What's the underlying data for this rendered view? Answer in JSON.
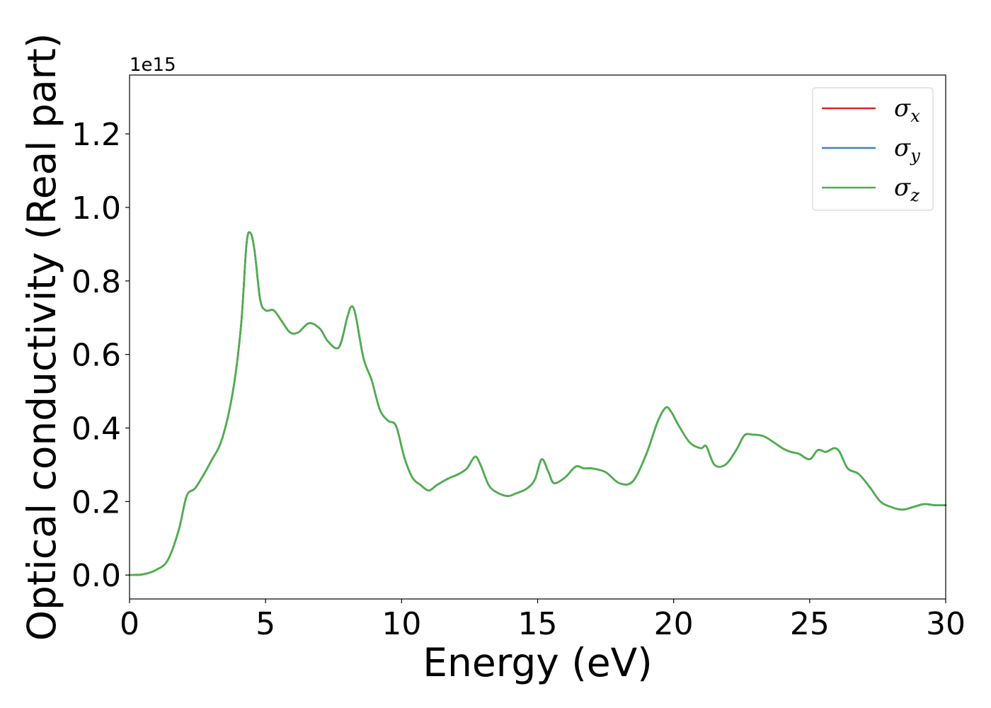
{
  "chart_data": {
    "type": "line",
    "xlabel": "Energy (eV)",
    "ylabel": "Optical conductivity (Real part)",
    "y_offset_label": "1e15",
    "xlim": [
      0,
      30
    ],
    "ylim": [
      -0.065,
      1.36
    ],
    "xticks": [
      0,
      5,
      10,
      15,
      20,
      25,
      30
    ],
    "xtick_labels": [
      "0",
      "5",
      "10",
      "15",
      "20",
      "25",
      "30"
    ],
    "yticks": [
      0.0,
      0.2,
      0.4,
      0.6,
      0.8,
      1.0,
      1.2
    ],
    "ytick_labels": [
      "0.0",
      "0.2",
      "0.4",
      "0.6",
      "0.8",
      "1.0",
      "1.2"
    ],
    "grid": false,
    "legend_position": "top-right",
    "series": [
      {
        "name": "σ_x",
        "symbol": "σ",
        "subscript": "x",
        "color": "#d62728",
        "x": [
          0,
          0.5,
          1.0,
          1.4,
          1.8,
          2.1,
          2.4,
          2.7,
          3.0,
          3.4,
          3.8,
          4.1,
          4.3,
          4.45,
          4.6,
          4.8,
          5.0,
          5.3,
          5.6,
          5.9,
          6.2,
          6.6,
          7.0,
          7.3,
          7.7,
          8.0,
          8.15,
          8.3,
          8.6,
          8.9,
          9.2,
          9.5,
          9.8,
          10.1,
          10.4,
          10.7,
          11.0,
          11.3,
          11.7,
          12.1,
          12.4,
          12.7,
          12.9,
          13.2,
          13.5,
          13.9,
          14.2,
          14.6,
          14.9,
          15.15,
          15.4,
          15.6,
          16.0,
          16.4,
          16.7,
          17.0,
          17.5,
          18.0,
          18.5,
          19.0,
          19.4,
          19.7,
          19.9,
          20.2,
          20.6,
          21.0,
          21.2,
          21.5,
          21.9,
          22.3,
          22.6,
          22.9,
          23.3,
          23.7,
          24.0,
          24.3,
          24.6,
          25.0,
          25.3,
          25.6,
          25.9,
          26.1,
          26.4,
          26.8,
          27.2,
          27.6,
          28.0,
          28.4,
          28.8,
          29.2,
          29.6,
          30.0
        ],
        "y": [
          0.0,
          0.002,
          0.015,
          0.04,
          0.12,
          0.215,
          0.235,
          0.27,
          0.31,
          0.37,
          0.5,
          0.68,
          0.9,
          0.93,
          0.88,
          0.75,
          0.72,
          0.72,
          0.69,
          0.66,
          0.66,
          0.685,
          0.67,
          0.635,
          0.62,
          0.7,
          0.73,
          0.71,
          0.59,
          0.53,
          0.45,
          0.42,
          0.405,
          0.32,
          0.265,
          0.245,
          0.23,
          0.245,
          0.262,
          0.275,
          0.29,
          0.322,
          0.3,
          0.245,
          0.225,
          0.215,
          0.222,
          0.235,
          0.26,
          0.315,
          0.28,
          0.25,
          0.265,
          0.295,
          0.29,
          0.29,
          0.28,
          0.25,
          0.255,
          0.33,
          0.415,
          0.455,
          0.445,
          0.405,
          0.36,
          0.345,
          0.35,
          0.3,
          0.3,
          0.34,
          0.38,
          0.382,
          0.378,
          0.36,
          0.345,
          0.335,
          0.33,
          0.315,
          0.34,
          0.335,
          0.345,
          0.335,
          0.29,
          0.275,
          0.24,
          0.2,
          0.185,
          0.178,
          0.185,
          0.193,
          0.19,
          0.19
        ]
      },
      {
        "name": "σ_y",
        "symbol": "σ",
        "subscript": "y",
        "color": "#3e7fbf",
        "x": [
          0,
          0.5,
          1.0,
          1.4,
          1.8,
          2.1,
          2.4,
          2.7,
          3.0,
          3.4,
          3.8,
          4.1,
          4.3,
          4.45,
          4.6,
          4.8,
          5.0,
          5.3,
          5.6,
          5.9,
          6.2,
          6.6,
          7.0,
          7.3,
          7.7,
          8.0,
          8.15,
          8.3,
          8.6,
          8.9,
          9.2,
          9.5,
          9.8,
          10.1,
          10.4,
          10.7,
          11.0,
          11.3,
          11.7,
          12.1,
          12.4,
          12.7,
          12.9,
          13.2,
          13.5,
          13.9,
          14.2,
          14.6,
          14.9,
          15.15,
          15.4,
          15.6,
          16.0,
          16.4,
          16.7,
          17.0,
          17.5,
          18.0,
          18.5,
          19.0,
          19.4,
          19.7,
          19.9,
          20.2,
          20.6,
          21.0,
          21.2,
          21.5,
          21.9,
          22.3,
          22.6,
          22.9,
          23.3,
          23.7,
          24.0,
          24.3,
          24.6,
          25.0,
          25.3,
          25.6,
          25.9,
          26.1,
          26.4,
          26.8,
          27.2,
          27.6,
          28.0,
          28.4,
          28.8,
          29.2,
          29.6,
          30.0
        ],
        "y": [
          0.0,
          0.002,
          0.015,
          0.04,
          0.12,
          0.215,
          0.235,
          0.27,
          0.31,
          0.37,
          0.5,
          0.68,
          0.9,
          0.93,
          0.88,
          0.75,
          0.72,
          0.72,
          0.69,
          0.66,
          0.66,
          0.685,
          0.67,
          0.635,
          0.62,
          0.7,
          0.73,
          0.71,
          0.59,
          0.53,
          0.45,
          0.42,
          0.405,
          0.32,
          0.265,
          0.245,
          0.23,
          0.245,
          0.262,
          0.275,
          0.29,
          0.322,
          0.3,
          0.245,
          0.225,
          0.215,
          0.222,
          0.235,
          0.26,
          0.315,
          0.28,
          0.25,
          0.265,
          0.295,
          0.29,
          0.29,
          0.28,
          0.25,
          0.255,
          0.33,
          0.415,
          0.455,
          0.445,
          0.405,
          0.36,
          0.345,
          0.35,
          0.3,
          0.3,
          0.34,
          0.38,
          0.382,
          0.378,
          0.36,
          0.345,
          0.335,
          0.33,
          0.315,
          0.34,
          0.335,
          0.345,
          0.335,
          0.29,
          0.275,
          0.24,
          0.2,
          0.185,
          0.178,
          0.185,
          0.193,
          0.19,
          0.19
        ]
      },
      {
        "name": "σ_z",
        "symbol": "σ",
        "subscript": "z",
        "color": "#4daf4a",
        "x": [
          0,
          0.5,
          1.0,
          1.4,
          1.8,
          2.1,
          2.4,
          2.7,
          3.0,
          3.4,
          3.8,
          4.1,
          4.3,
          4.45,
          4.6,
          4.8,
          5.0,
          5.3,
          5.6,
          5.9,
          6.2,
          6.6,
          7.0,
          7.3,
          7.7,
          8.0,
          8.15,
          8.3,
          8.6,
          8.9,
          9.2,
          9.5,
          9.8,
          10.1,
          10.4,
          10.7,
          11.0,
          11.3,
          11.7,
          12.1,
          12.4,
          12.7,
          12.9,
          13.2,
          13.5,
          13.9,
          14.2,
          14.6,
          14.9,
          15.15,
          15.4,
          15.6,
          16.0,
          16.4,
          16.7,
          17.0,
          17.5,
          18.0,
          18.5,
          19.0,
          19.4,
          19.7,
          19.9,
          20.2,
          20.6,
          21.0,
          21.2,
          21.5,
          21.9,
          22.3,
          22.6,
          22.9,
          23.3,
          23.7,
          24.0,
          24.3,
          24.6,
          25.0,
          25.3,
          25.6,
          25.9,
          26.1,
          26.4,
          26.8,
          27.2,
          27.6,
          28.0,
          28.4,
          28.8,
          29.2,
          29.6,
          30.0
        ],
        "y": [
          0.0,
          0.002,
          0.015,
          0.04,
          0.12,
          0.215,
          0.235,
          0.27,
          0.31,
          0.37,
          0.5,
          0.68,
          0.9,
          0.93,
          0.88,
          0.75,
          0.72,
          0.72,
          0.69,
          0.66,
          0.66,
          0.685,
          0.67,
          0.635,
          0.62,
          0.7,
          0.73,
          0.71,
          0.59,
          0.53,
          0.45,
          0.42,
          0.405,
          0.32,
          0.265,
          0.245,
          0.23,
          0.245,
          0.262,
          0.275,
          0.29,
          0.322,
          0.3,
          0.245,
          0.225,
          0.215,
          0.222,
          0.235,
          0.26,
          0.315,
          0.28,
          0.25,
          0.265,
          0.295,
          0.29,
          0.29,
          0.28,
          0.25,
          0.255,
          0.33,
          0.415,
          0.455,
          0.445,
          0.405,
          0.36,
          0.345,
          0.35,
          0.3,
          0.3,
          0.34,
          0.38,
          0.382,
          0.378,
          0.36,
          0.345,
          0.335,
          0.33,
          0.315,
          0.34,
          0.335,
          0.345,
          0.335,
          0.29,
          0.275,
          0.24,
          0.2,
          0.185,
          0.178,
          0.185,
          0.193,
          0.19,
          0.19
        ]
      }
    ]
  }
}
